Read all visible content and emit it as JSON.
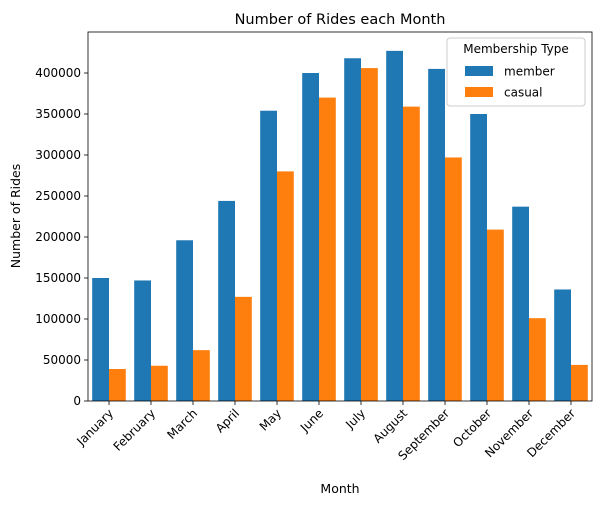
{
  "chart_data": {
    "type": "bar",
    "title": "Number of Rides each Month",
    "xlabel": "Month",
    "ylabel": "Number of Rides",
    "categories": [
      "January",
      "February",
      "March",
      "April",
      "May",
      "June",
      "July",
      "August",
      "September",
      "October",
      "November",
      "December"
    ],
    "series": [
      {
        "name": "member",
        "color": "#1f77b4",
        "values": [
          150000,
          147000,
          196000,
          244000,
          354000,
          400000,
          418000,
          427000,
          405000,
          350000,
          237000,
          136000
        ]
      },
      {
        "name": "casual",
        "color": "#ff7f0e",
        "values": [
          39000,
          43000,
          62000,
          127000,
          280000,
          370000,
          406000,
          359000,
          297000,
          209000,
          101000,
          44000
        ]
      }
    ],
    "ylim": [
      0,
      450000
    ],
    "yticks": [
      "0",
      "50000",
      "100000",
      "150000",
      "200000",
      "250000",
      "300000",
      "350000",
      "400000"
    ],
    "grid": false,
    "legend": {
      "title": "Membership Type",
      "placement": "top-right"
    }
  }
}
